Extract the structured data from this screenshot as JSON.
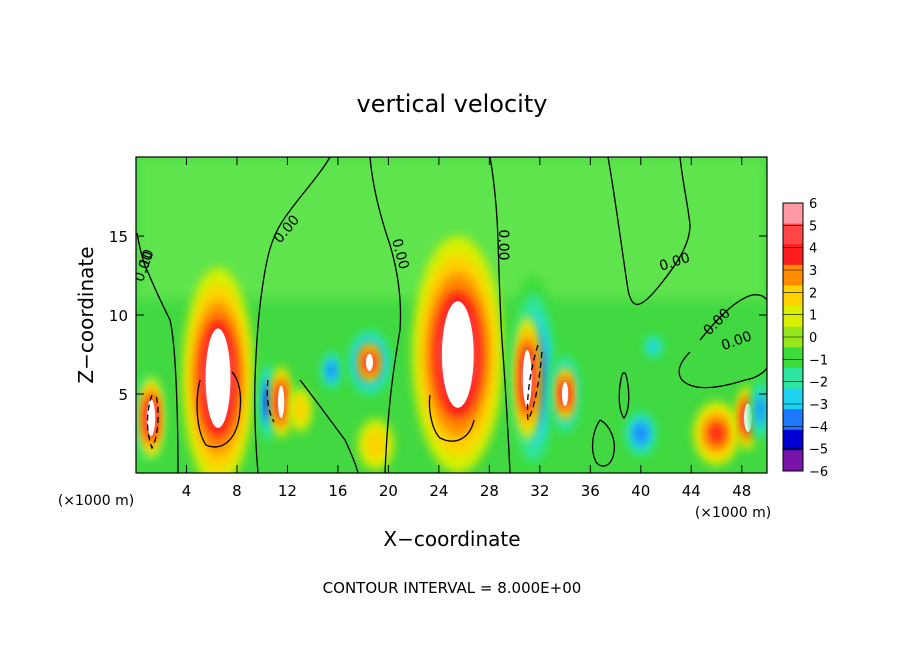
{
  "chart_data": {
    "type": "heatmap",
    "title": "vertical velocity",
    "xlabel": "X−coordinate",
    "ylabel": "Z−coordinate",
    "x_unit_label": "(×1000 m)",
    "xlim": [
      0,
      50
    ],
    "ylim": [
      0,
      20
    ],
    "x_ticks": [
      4,
      8,
      12,
      16,
      20,
      24,
      28,
      32,
      36,
      40,
      44,
      48
    ],
    "y_ticks": [
      5,
      10,
      15
    ],
    "colorbar": {
      "min": -6,
      "max": 6,
      "ticks": [
        6,
        5,
        4,
        3,
        2,
        1,
        0,
        -1,
        -2,
        -3,
        -4,
        -5,
        -6
      ],
      "tick_labels": [
        "6",
        "5",
        "4",
        "3",
        "2",
        "1",
        "0",
        "−1",
        "−2",
        "−3",
        "−4",
        "−5",
        "−6"
      ]
    },
    "contour_labels": [
      "0.00",
      "0.00",
      "0.00",
      "0.00",
      "0.00",
      "0.00",
      "0.00",
      ".10"
    ],
    "footer": "CONTOUR INTERVAL = 8.000E+00",
    "cells": [
      {
        "x": 1.0,
        "z": 3.5,
        "w": -5,
        "rx": 1.3,
        "rz": 3.2
      },
      {
        "x": 1.2,
        "z": 3.5,
        "w": 8,
        "rx": 0.9,
        "rz": 2.6
      },
      {
        "x": 6.5,
        "z": 6.0,
        "w": 8,
        "rx": 2.8,
        "rz": 7.0
      },
      {
        "x": 10.5,
        "z": 4.5,
        "w": -5,
        "rx": 0.8,
        "rz": 3.0
      },
      {
        "x": 11.5,
        "z": 4.5,
        "w": 7,
        "rx": 0.7,
        "rz": 2.3
      },
      {
        "x": 13.0,
        "z": 4.0,
        "w": 2,
        "rx": 0.9,
        "rz": 1.4
      },
      {
        "x": 15.5,
        "z": 6.5,
        "w": -4,
        "rx": 1.0,
        "rz": 1.5
      },
      {
        "x": 18.5,
        "z": 7.0,
        "w": -5,
        "rx": 2.0,
        "rz": 2.5
      },
      {
        "x": 18.5,
        "z": 7.0,
        "w": 7,
        "rx": 0.8,
        "rz": 1.2
      },
      {
        "x": 19.0,
        "z": 1.8,
        "w": 2,
        "rx": 1.4,
        "rz": 1.6
      },
      {
        "x": 25.5,
        "z": 7.5,
        "w": 8,
        "rx": 3.6,
        "rz": 7.5
      },
      {
        "x": 31.5,
        "z": 6.0,
        "w": -5,
        "rx": 2.0,
        "rz": 6.5
      },
      {
        "x": 31.0,
        "z": 6.0,
        "w": 8,
        "rx": 1.0,
        "rz": 4.0
      },
      {
        "x": 34.0,
        "z": 5.0,
        "w": -5,
        "rx": 1.3,
        "rz": 3.0
      },
      {
        "x": 34.0,
        "z": 5.0,
        "w": 8,
        "rx": 0.7,
        "rz": 1.7
      },
      {
        "x": 40.0,
        "z": 2.5,
        "w": -4,
        "rx": 1.5,
        "rz": 1.8
      },
      {
        "x": 41.0,
        "z": 8.0,
        "w": -3,
        "rx": 1.0,
        "rz": 1.0
      },
      {
        "x": 46.0,
        "z": 2.5,
        "w": 4,
        "rx": 1.8,
        "rz": 2.0
      },
      {
        "x": 48.5,
        "z": 3.5,
        "w": 8,
        "rx": 0.9,
        "rz": 2.0
      },
      {
        "x": 49.5,
        "z": 4.0,
        "w": -4,
        "rx": 0.8,
        "rz": 2.5
      }
    ]
  },
  "colors": {
    "palette_high_to_low": [
      "#ff9aa4",
      "#ff4646",
      "#ff1e1e",
      "#ff8c00",
      "#ffd200",
      "#d8f000",
      "#96e61e",
      "#3cdc3c",
      "#2ee6a0",
      "#1ed2f0",
      "#1e78ff",
      "#0000d2",
      "#7814a8"
    ],
    "background_field": "#41d841",
    "upper_field": "#64e650",
    "overflow": "#ffffff",
    "contour": "#000000"
  }
}
